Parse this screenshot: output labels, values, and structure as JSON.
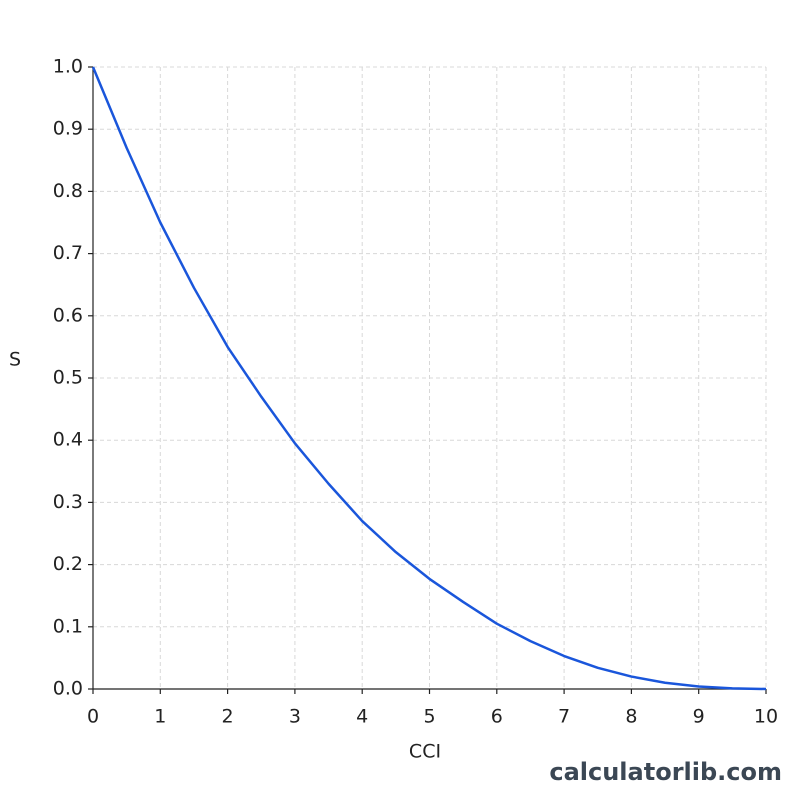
{
  "chart_data": {
    "type": "line",
    "x_label": "CCI",
    "y_label": "S",
    "watermark": "calculatorlib.com",
    "x": [
      0,
      0.5,
      1,
      1.5,
      2,
      2.5,
      3,
      3.5,
      4,
      4.5,
      5,
      5.5,
      6,
      6.5,
      7,
      7.5,
      8,
      8.5,
      9,
      9.5,
      10
    ],
    "series": [
      {
        "color": "#1a56db",
        "values": [
          1.0,
          0.87,
          0.75,
          0.645,
          0.55,
          0.47,
          0.395,
          0.33,
          0.27,
          0.22,
          0.177,
          0.14,
          0.105,
          0.077,
          0.053,
          0.034,
          0.02,
          0.01,
          0.004,
          0.001,
          0.0
        ]
      }
    ],
    "xlim": [
      0,
      10
    ],
    "ylim": [
      0,
      1
    ],
    "xticks": [
      0,
      1,
      2,
      3,
      4,
      5,
      6,
      7,
      8,
      9,
      10
    ],
    "yticks": [
      {
        "value": 0,
        "label": "0.0"
      },
      0.1,
      0.2,
      0.3,
      0.4,
      0.5,
      0.6,
      0.7,
      0.8,
      0.9,
      {
        "value": 1,
        "label": "1.0"
      }
    ],
    "grid": true
  }
}
